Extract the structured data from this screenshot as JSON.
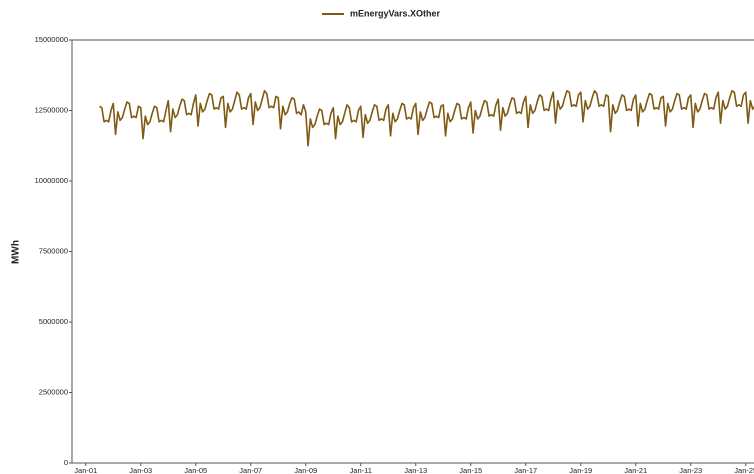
{
  "chart_data": {
    "type": "line",
    "legend": "top",
    "y_label": "MWh",
    "x": [
      "Jul-01",
      "Aug-01",
      "Sep-01",
      "Oct-01",
      "Nov-01",
      "Dec-01",
      "Jan-02",
      "Feb-02",
      "Mar-02",
      "Apr-02",
      "May-02",
      "Jun-02",
      "Jul-02",
      "Aug-02",
      "Sep-02",
      "Oct-02",
      "Nov-02",
      "Dec-02",
      "Jan-03",
      "Feb-03",
      "Mar-03",
      "Apr-03",
      "May-03",
      "Jun-03",
      "Jul-03",
      "Aug-03",
      "Sep-03",
      "Oct-03",
      "Nov-03",
      "Dec-03",
      "Jan-04",
      "Feb-04",
      "Mar-04",
      "Apr-04",
      "May-04",
      "Jun-04",
      "Jul-04",
      "Aug-04",
      "Sep-04",
      "Oct-04",
      "Nov-04",
      "Dec-04",
      "Jan-05",
      "Feb-05",
      "Mar-05",
      "Apr-05",
      "May-05",
      "Jun-05",
      "Jul-05",
      "Aug-05",
      "Sep-05",
      "Oct-05",
      "Nov-05",
      "Dec-05",
      "Jan-06",
      "Feb-06",
      "Mar-06",
      "Apr-06",
      "May-06",
      "Jun-06",
      "Jul-06",
      "Aug-06",
      "Sep-06",
      "Oct-06",
      "Nov-06",
      "Dec-06",
      "Jan-07",
      "Feb-07",
      "Mar-07",
      "Apr-07",
      "May-07",
      "Jun-07",
      "Jul-07",
      "Aug-07",
      "Sep-07",
      "Oct-07",
      "Nov-07",
      "Dec-07",
      "Jan-08",
      "Feb-08",
      "Mar-08",
      "Apr-08",
      "May-08",
      "Jun-08",
      "Jul-08",
      "Aug-08",
      "Sep-08",
      "Oct-08",
      "Nov-08",
      "Dec-08",
      "Jan-09",
      "Feb-09",
      "Mar-09",
      "Apr-09",
      "May-09",
      "Jun-09",
      "Jul-09",
      "Aug-09",
      "Sep-09",
      "Oct-09",
      "Nov-09",
      "Dec-09",
      "Jan-10",
      "Feb-10",
      "Mar-10",
      "Apr-10",
      "May-10",
      "Jun-10",
      "Jul-10",
      "Aug-10",
      "Sep-10",
      "Oct-10",
      "Nov-10",
      "Dec-10",
      "Jan-11",
      "Feb-11",
      "Mar-11",
      "Apr-11",
      "May-11",
      "Jun-11",
      "Jul-11",
      "Aug-11",
      "Sep-11",
      "Oct-11",
      "Nov-11",
      "Dec-11",
      "Jan-12",
      "Feb-12",
      "Mar-12",
      "Apr-12",
      "May-12",
      "Jun-12",
      "Jul-12",
      "Aug-12",
      "Sep-12",
      "Oct-12",
      "Nov-12",
      "Dec-12",
      "Jan-13",
      "Feb-13",
      "Mar-13",
      "Apr-13",
      "May-13",
      "Jun-13",
      "Jul-13",
      "Aug-13",
      "Sep-13",
      "Oct-13",
      "Nov-13",
      "Dec-13",
      "Jan-14",
      "Feb-14",
      "Mar-14",
      "Apr-14",
      "May-14",
      "Jun-14",
      "Jul-14",
      "Aug-14",
      "Sep-14",
      "Oct-14",
      "Nov-14",
      "Dec-14",
      "Jan-15",
      "Feb-15",
      "Mar-15",
      "Apr-15",
      "May-15",
      "Jun-15",
      "Jul-15",
      "Aug-15",
      "Sep-15",
      "Oct-15",
      "Nov-15",
      "Dec-15",
      "Jan-16",
      "Feb-16",
      "Mar-16",
      "Apr-16",
      "May-16",
      "Jun-16",
      "Jul-16",
      "Aug-16",
      "Sep-16",
      "Oct-16",
      "Nov-16",
      "Dec-16",
      "Jan-17",
      "Feb-17",
      "Mar-17",
      "Apr-17",
      "May-17",
      "Jun-17",
      "Jul-17",
      "Aug-17",
      "Sep-17",
      "Oct-17",
      "Nov-17",
      "Dec-17",
      "Jan-18",
      "Feb-18",
      "Mar-18",
      "Apr-18",
      "May-18",
      "Jun-18",
      "Jul-18",
      "Aug-18",
      "Sep-18",
      "Oct-18",
      "Nov-18",
      "Dec-18",
      "Jan-19",
      "Feb-19",
      "Mar-19",
      "Apr-19",
      "May-19",
      "Jun-19",
      "Jul-19",
      "Aug-19",
      "Sep-19",
      "Oct-19",
      "Nov-19",
      "Dec-19",
      "Jan-20",
      "Feb-20",
      "Mar-20",
      "Apr-20",
      "May-20",
      "Jun-20",
      "Jul-20",
      "Aug-20",
      "Sep-20",
      "Oct-20",
      "Nov-20",
      "Dec-20",
      "Jan-21",
      "Feb-21",
      "Mar-21",
      "Apr-21",
      "May-21",
      "Jun-21",
      "Jul-21",
      "Aug-21",
      "Sep-21",
      "Oct-21",
      "Nov-21",
      "Dec-21",
      "Jan-22",
      "Feb-22",
      "Mar-22",
      "Apr-22",
      "May-22",
      "Jun-22",
      "Jul-22",
      "Aug-22",
      "Sep-22",
      "Oct-22",
      "Nov-22",
      "Dec-22",
      "Jan-23",
      "Feb-23",
      "Mar-23",
      "Apr-23",
      "May-23",
      "Jun-23",
      "Jul-23",
      "Aug-23",
      "Sep-23",
      "Oct-23",
      "Nov-23",
      "Dec-23",
      "Jan-24",
      "Feb-24",
      "Mar-24",
      "Apr-24",
      "May-24",
      "Jun-24",
      "Jul-24",
      "Aug-24",
      "Sep-24",
      "Oct-24",
      "Nov-24",
      "Dec-24",
      "Jan-25",
      "Feb-25",
      "Mar-25",
      "Apr-25",
      "May-25",
      "Jun-25"
    ],
    "series": [
      {
        "name": "mEnergyVars.XOther",
        "color": "#7f5a12",
        "values": [
          12650000,
          12600000,
          12100000,
          12150000,
          12100000,
          12500000,
          12750000,
          11650000,
          12450000,
          12150000,
          12250000,
          12550000,
          12800000,
          12750000,
          12250000,
          12300000,
          12250000,
          12650000,
          12600000,
          11500000,
          12300000,
          12000000,
          12100000,
          12400000,
          12650000,
          12600000,
          12100000,
          12150000,
          12100000,
          12500000,
          12850000,
          11750000,
          12550000,
          12250000,
          12350000,
          12650000,
          12900000,
          12850000,
          12350000,
          12400000,
          12350000,
          12750000,
          13050000,
          11950000,
          12750000,
          12450000,
          12550000,
          12850000,
          13100000,
          13050000,
          12550000,
          12600000,
          12550000,
          12950000,
          13000000,
          11900000,
          12750000,
          12450000,
          12550000,
          12850000,
          13150000,
          13050000,
          12550000,
          12600000,
          12550000,
          12950000,
          13100000,
          12000000,
          12800000,
          12500000,
          12600000,
          12900000,
          13200000,
          13100000,
          12600000,
          12650000,
          12600000,
          13000000,
          12950000,
          11850000,
          12650000,
          12350000,
          12450000,
          12750000,
          12950000,
          12900000,
          12400000,
          12450000,
          12350000,
          12700000,
          12450000,
          11250000,
          12200000,
          11900000,
          12000000,
          12300000,
          12550000,
          12500000,
          12000000,
          12050000,
          12000000,
          12400000,
          12600000,
          11500000,
          12300000,
          12000000,
          12100000,
          12400000,
          12700000,
          12600000,
          12100000,
          12150000,
          12100000,
          12500000,
          12650000,
          11550000,
          12350000,
          12050000,
          12150000,
          12450000,
          12700000,
          12650000,
          12150000,
          12200000,
          12150000,
          12550000,
          12700000,
          11600000,
          12400000,
          12100000,
          12200000,
          12500000,
          12750000,
          12700000,
          12200000,
          12250000,
          12200000,
          12600000,
          12750000,
          11650000,
          12450000,
          12150000,
          12250000,
          12550000,
          12800000,
          12750000,
          12250000,
          12300000,
          12250000,
          12650000,
          12700000,
          11600000,
          12400000,
          12100000,
          12200000,
          12500000,
          12750000,
          12700000,
          12200000,
          12250000,
          12200000,
          12600000,
          12800000,
          11700000,
          12500000,
          12200000,
          12300000,
          12600000,
          12850000,
          12800000,
          12300000,
          12350000,
          12300000,
          12700000,
          12900000,
          11800000,
          12600000,
          12300000,
          12400000,
          12700000,
          12950000,
          12900000,
          12400000,
          12450000,
          12400000,
          12800000,
          13000000,
          11900000,
          12700000,
          12400000,
          12500000,
          12800000,
          13050000,
          13000000,
          12500000,
          12550000,
          12500000,
          12900000,
          13150000,
          12050000,
          12850000,
          12550000,
          12650000,
          12950000,
          13200000,
          13150000,
          12650000,
          12700000,
          12650000,
          13050000,
          13150000,
          12100000,
          12850000,
          12550000,
          12650000,
          12950000,
          13200000,
          13100000,
          12650000,
          12700000,
          12650000,
          13050000,
          13000000,
          11750000,
          12700000,
          12400000,
          12500000,
          12800000,
          13050000,
          13000000,
          12500000,
          12550000,
          12500000,
          12900000,
          13050000,
          11950000,
          12750000,
          12450000,
          12550000,
          12850000,
          13100000,
          13050000,
          12550000,
          12600000,
          12550000,
          12950000,
          13000000,
          11950000,
          12750000,
          12450000,
          12550000,
          12850000,
          13100000,
          13050000,
          12550000,
          12600000,
          12550000,
          12950000,
          13050000,
          11900000,
          12750000,
          12450000,
          12550000,
          12850000,
          13100000,
          13050000,
          12550000,
          12600000,
          12550000,
          12950000,
          13150000,
          12050000,
          12850000,
          12550000,
          12650000,
          12950000,
          13200000,
          13150000,
          12650000,
          12700000,
          12650000,
          13050000,
          13150000,
          12050000,
          12850000,
          12550000,
          12650000,
          12950000
        ]
      }
    ],
    "xlim": [
      "Jul-00",
      "Jul-25"
    ],
    "xticks": [
      "Jan-01",
      "Jan-03",
      "Jan-05",
      "Jan-07",
      "Jan-09",
      "Jan-11",
      "Jan-13",
      "Jan-15",
      "Jan-17",
      "Jan-19",
      "Jan-21",
      "Jan-23",
      "Jan-25"
    ],
    "ylim": [
      0,
      15000000
    ],
    "yticks": [
      0,
      2500000,
      5000000,
      7500000,
      10000000,
      12500000,
      15000000
    ],
    "grid": false
  }
}
